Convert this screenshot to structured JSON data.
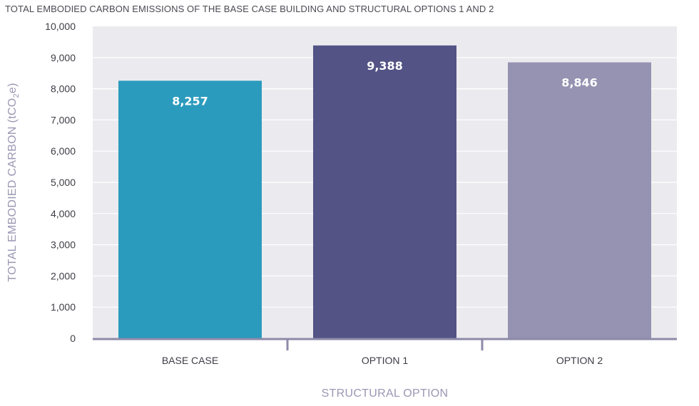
{
  "chart_data": {
    "type": "bar",
    "title": "TOTAL EMBODIED CARBON EMISSIONS OF THE BASE CASE BUILDING AND STRUCTURAL OPTIONS 1 AND 2",
    "xlabel": "STRUCTURAL OPTION",
    "ylabel_main": "TOTAL EMBODIED CARBON (tCO",
    "ylabel_sub": "2",
    "ylabel_tail": "e)",
    "ylim": [
      0,
      10000
    ],
    "yticks": [
      0,
      1000,
      2000,
      3000,
      4000,
      5000,
      6000,
      7000,
      8000,
      9000,
      10000
    ],
    "ytick_labels": [
      "0",
      "1,000",
      "2,000",
      "3,000",
      "4,000",
      "5,000",
      "6,000",
      "7,000",
      "8,000",
      "9,000",
      "10,000"
    ],
    "categories": [
      "BASE CASE",
      "OPTION 1",
      "OPTION 2"
    ],
    "values": [
      8257,
      9388,
      8846
    ],
    "value_labels": [
      "8,257",
      "9,388",
      "8,846"
    ],
    "colors": [
      "#2b9bbd",
      "#535386",
      "#9592b2"
    ],
    "grid": true
  },
  "style": {
    "plot_background": "#ebebef",
    "grid_color": "#ffffff",
    "axis_color": "#8e8aa8",
    "axis_title_color": "#9a97b3"
  }
}
